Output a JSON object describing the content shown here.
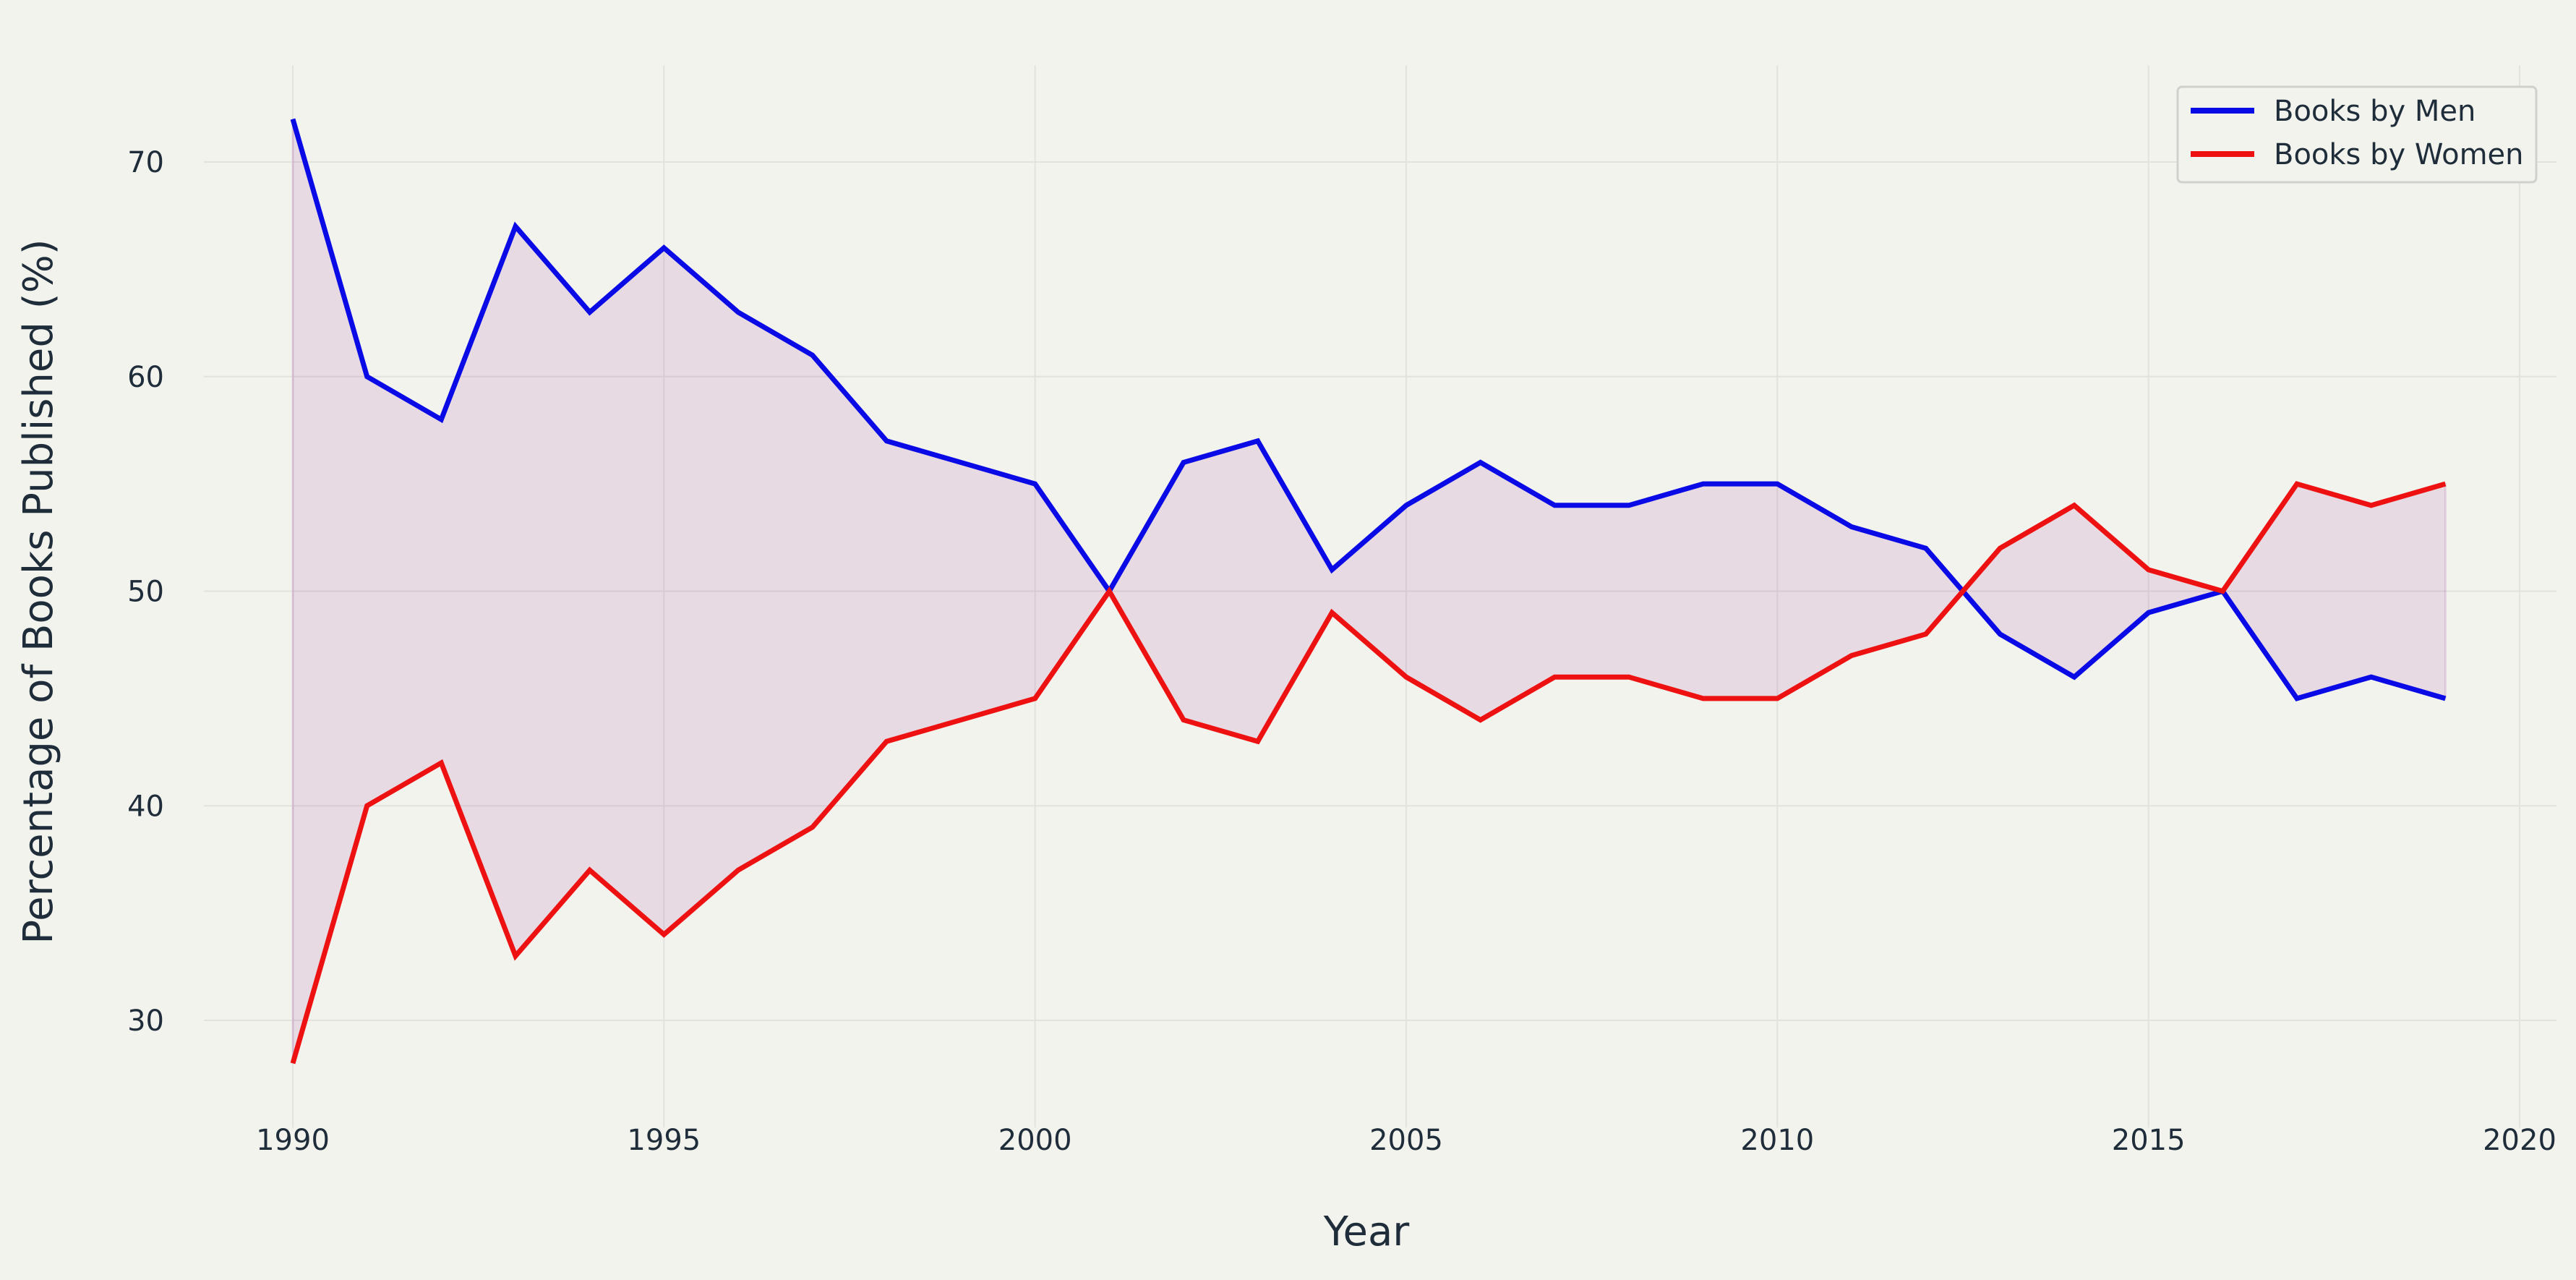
{
  "chart_data": {
    "type": "line",
    "title": "",
    "xlabel": "Year",
    "ylabel": "Percentage of Books Published (%)",
    "x": [
      1990,
      1991,
      1992,
      1993,
      1994,
      1995,
      1996,
      1997,
      1998,
      1999,
      2000,
      2001,
      2002,
      2003,
      2004,
      2005,
      2006,
      2007,
      2008,
      2009,
      2010,
      2011,
      2012,
      2013,
      2014,
      2015,
      2016,
      2017,
      2018,
      2019
    ],
    "series": [
      {
        "name": "Books by Men",
        "color": "#0a0ae6",
        "values": [
          72,
          60,
          58,
          67,
          63,
          66,
          63,
          61,
          57,
          56,
          55,
          50,
          56,
          57,
          51,
          54,
          56,
          54,
          54,
          55,
          55,
          53,
          52,
          48,
          46,
          49,
          50,
          45,
          46,
          45
        ]
      },
      {
        "name": "Books by Women",
        "color": "#ee1111",
        "values": [
          28,
          40,
          42,
          33,
          37,
          34,
          37,
          39,
          43,
          44,
          45,
          50,
          44,
          43,
          49,
          46,
          44,
          46,
          46,
          45,
          45,
          47,
          48,
          52,
          54,
          51,
          50,
          55,
          54,
          55
        ]
      }
    ],
    "fill_between": {
      "color": "#800080",
      "opacity": 0.1
    },
    "xlim": [
      1988.8,
      2020.5
    ],
    "ylim": [
      25.0,
      74.5
    ],
    "xticks": [
      1990,
      1995,
      2000,
      2005,
      2010,
      2015,
      2020
    ],
    "yticks": [
      30,
      40,
      50,
      60,
      70
    ],
    "grid": true,
    "legend_position": "top-right",
    "background": "#f3f3ee"
  }
}
